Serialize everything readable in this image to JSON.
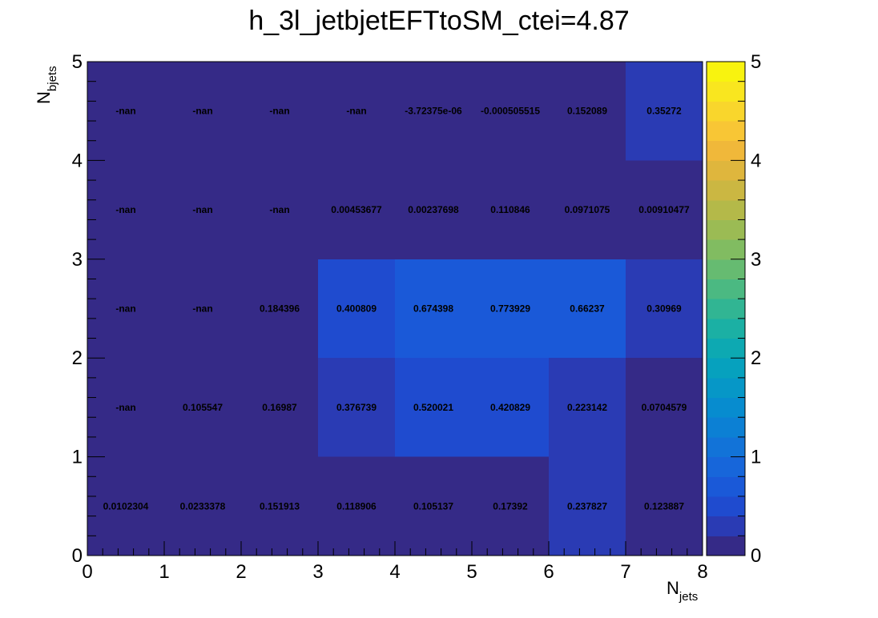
{
  "chart_data": {
    "type": "heatmap",
    "title": "h_3l_jetbjetEFTtoSM_ctei=4.87",
    "xlabel": {
      "main": "N",
      "sub": "jets"
    },
    "ylabel": {
      "main": "N",
      "sub": "bjets"
    },
    "x_edges": [
      0,
      1,
      2,
      3,
      4,
      5,
      6,
      7,
      8
    ],
    "y_edges": [
      0,
      1,
      2,
      3,
      4,
      5
    ],
    "xlim": [
      0,
      8
    ],
    "ylim": [
      0,
      5
    ],
    "x_ticks": [
      "0",
      "1",
      "2",
      "3",
      "4",
      "5",
      "6",
      "7",
      "8"
    ],
    "y_ticks": [
      "0",
      "1",
      "2",
      "3",
      "4",
      "5"
    ],
    "z_range": [
      0,
      5
    ],
    "z_ticks": [
      "0",
      "1",
      "2",
      "3",
      "4",
      "5"
    ],
    "colormap": "parula",
    "nan_color": "#352a87",
    "colorbar_colors": [
      "#352a87",
      "#2a3bb4",
      "#1f4bcf",
      "#1a59d8",
      "#1766da",
      "#1273d8",
      "#0c80d4",
      "#078ccf",
      "#0697c7",
      "#06a1be",
      "#0da9b2",
      "#1bb0a4",
      "#31b593",
      "#4bb982",
      "#66bb71",
      "#81bc61",
      "#9bbb54",
      "#b4b949",
      "#cbb742",
      "#dfb63d",
      "#f0b83a",
      "#f8c635",
      "#f9d62c",
      "#f9e61f",
      "#f8f30f"
    ],
    "rows": [
      {
        "y_bin": 0,
        "values": [
          0.0102304,
          0.0233378,
          0.151913,
          0.118906,
          0.105137,
          0.17392,
          0.237827,
          0.123887
        ],
        "labels": [
          "0.0102304",
          "0.0233378",
          "0.151913",
          "0.118906",
          "0.105137",
          "0.17392",
          "0.237827",
          "0.123887"
        ]
      },
      {
        "y_bin": 1,
        "values": [
          null,
          0.105547,
          0.16987,
          0.376739,
          0.520021,
          0.420829,
          0.223142,
          0.0704579
        ],
        "labels": [
          "-nan",
          "0.105547",
          "0.16987",
          "0.376739",
          "0.520021",
          "0.420829",
          "0.223142",
          "0.0704579"
        ]
      },
      {
        "y_bin": 2,
        "values": [
          null,
          null,
          0.184396,
          0.400809,
          0.674398,
          0.773929,
          0.66237,
          0.30969
        ],
        "labels": [
          "-nan",
          "-nan",
          "0.184396",
          "0.400809",
          "0.674398",
          "0.773929",
          "0.66237",
          "0.30969"
        ]
      },
      {
        "y_bin": 3,
        "values": [
          null,
          null,
          null,
          0.00453677,
          0.00237698,
          0.110846,
          0.0971075,
          0.00910477
        ],
        "labels": [
          "-nan",
          "-nan",
          "-nan",
          "0.00453677",
          "0.00237698",
          "0.110846",
          "0.0971075",
          "0.00910477"
        ]
      },
      {
        "y_bin": 4,
        "values": [
          null,
          null,
          null,
          null,
          -3.72375e-06,
          -0.000505515,
          0.152089,
          0.35272
        ],
        "labels": [
          "-nan",
          "-nan",
          "-nan",
          "-nan",
          "-3.72375e-06",
          "-0.000505515",
          "0.152089",
          "0.35272"
        ]
      }
    ]
  }
}
